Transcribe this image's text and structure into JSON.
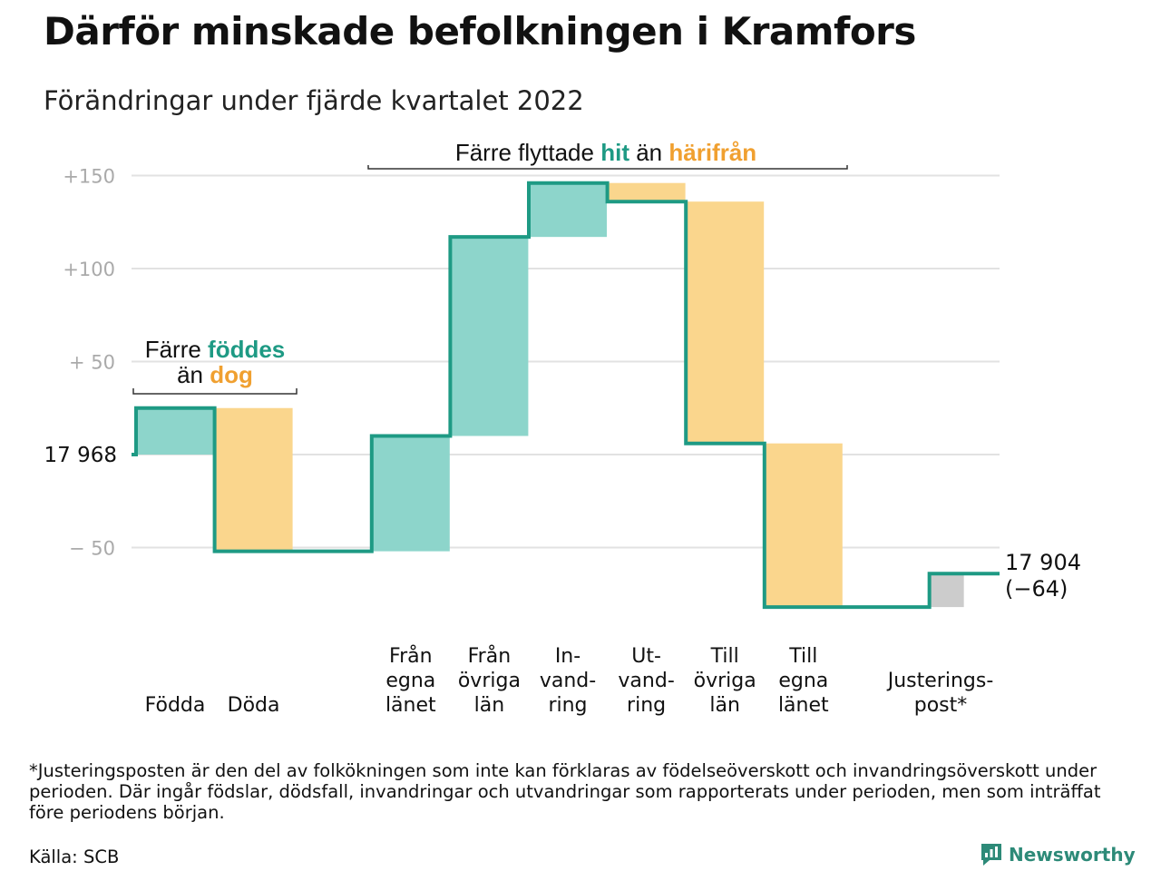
{
  "title": "Därför minskade befolkningen i Kramfors",
  "subtitle": "Förändringar under fjärde kvartalet 2022",
  "footnote": "*Justeringsposten är den del av folkökningen som inte kan förklaras av födelseöverskott och invandringsöverskott under perioden. Där ingår födslar, dödsfall, invandringar och utvandringar som rapporterats under perioden, men som inträffat före periodens början.",
  "source": "Källa: SCB",
  "brand": {
    "name": "Newsworthy",
    "icon": "newsworthy-logo-icon"
  },
  "colors": {
    "increase": "#8dd5cb",
    "decrease": "#fad68d",
    "adjustment": "#cccccc",
    "line": "#1e9a84",
    "hit_text": "#1e9a84",
    "harifran_text": "#f0a030",
    "grid": "#e2e2e2",
    "tick_text": "#aaaaaa"
  },
  "chart_data": {
    "type": "waterfall",
    "ylim": [
      -70,
      155
    ],
    "yticks": [
      {
        "value": 150,
        "label": "+150"
      },
      {
        "value": 100,
        "label": "+100"
      },
      {
        "value": 50,
        "label": "+ 50"
      },
      {
        "value": 0,
        "label": "17 968"
      },
      {
        "value": -50,
        "label": "− 50"
      }
    ],
    "start_label": "17 968",
    "end_label": [
      "17 904",
      "(−64)"
    ],
    "grid": true,
    "bars": [
      {
        "key": "fodda",
        "lines": [
          "Födda"
        ],
        "value": 25,
        "kind": "increase"
      },
      {
        "key": "doda",
        "lines": [
          "Döda"
        ],
        "value": -77,
        "kind": "decrease"
      },
      {
        "key": "fran-egna-lanet",
        "lines": [
          "Från",
          "egna",
          "länet"
        ],
        "value": 62,
        "kind": "increase"
      },
      {
        "key": "fran-ovriga-lan",
        "lines": [
          "Från",
          "övriga",
          "län"
        ],
        "value": 107,
        "kind": "increase"
      },
      {
        "key": "invandring",
        "lines": [
          "In-",
          "vand-",
          "ring"
        ],
        "value": 29,
        "kind": "increase"
      },
      {
        "key": "utvandring",
        "lines": [
          "Ut-",
          "vand-",
          "ring"
        ],
        "value": -10,
        "kind": "decrease"
      },
      {
        "key": "till-ovriga-lan",
        "lines": [
          "Till",
          "övriga",
          "län"
        ],
        "value": -130,
        "kind": "decrease"
      },
      {
        "key": "till-egna-lanet",
        "lines": [
          "Till",
          "egna",
          "länet"
        ],
        "value": -88,
        "kind": "decrease"
      },
      {
        "key": "justeringspost",
        "lines": [
          "Justerings-",
          "post*"
        ],
        "value": 18,
        "kind": "adjustment"
      }
    ],
    "annotations": [
      {
        "key": "fodda-doda",
        "line1": [
          {
            "text": "Färre ",
            "style": "plain"
          },
          {
            "text": "föddes",
            "style": "hit"
          }
        ],
        "line2": [
          {
            "text": "än ",
            "style": "plain"
          },
          {
            "text": "dog",
            "style": "harifran"
          }
        ]
      },
      {
        "key": "flyttade",
        "line1": [
          {
            "text": "Färre flyttade ",
            "style": "plain"
          },
          {
            "text": "hit",
            "style": "hit"
          },
          {
            "text": " än ",
            "style": "plain"
          },
          {
            "text": "härifrån",
            "style": "harifran"
          }
        ]
      }
    ]
  }
}
